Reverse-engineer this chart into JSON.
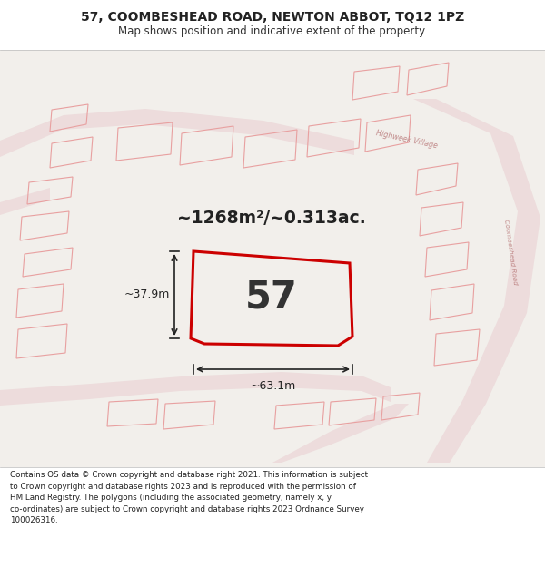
{
  "title_line1": "57, COOMBESHEAD ROAD, NEWTON ABBOT, TQ12 1PZ",
  "title_line2": "Map shows position and indicative extent of the property.",
  "footer_lines": [
    "Contains OS data © Crown copyright and database right 2021. This information is subject",
    "to Crown copyright and database rights 2023 and is reproduced with the permission of",
    "HM Land Registry. The polygons (including the associated geometry, namely x, y",
    "co-ordinates) are subject to Crown copyright and database rights 2023 Ordnance Survey",
    "100026316."
  ],
  "area_label": "~1268m²/~0.313ac.",
  "property_number": "57",
  "width_label": "~63.1m",
  "height_label": "~37.9m",
  "map_bg": "#f2efeb",
  "road_fill": "#eddcdc",
  "property_outline_color": "#cc0000",
  "bldg_color": "#e8a0a0",
  "title_bg": "#ffffff",
  "footer_bg": "#ffffff",
  "figsize": [
    6.0,
    6.25
  ],
  "dpi": 100
}
